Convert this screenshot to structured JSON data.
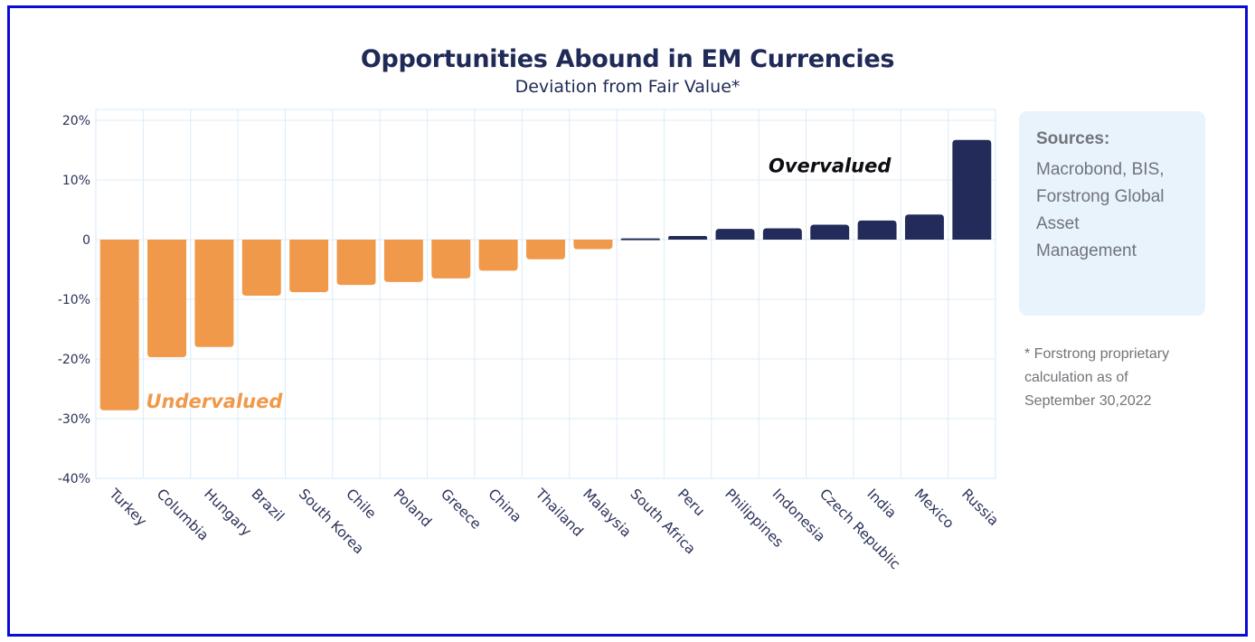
{
  "chart_data": {
    "type": "bar",
    "title": "Opportunities Abound in EM Currencies",
    "subtitle": "Deviation from Fair Value*",
    "xlabel": "",
    "ylabel": "",
    "ylim": [
      -40,
      20
    ],
    "yticks": [
      20,
      10,
      0,
      -10,
      -20,
      -30,
      -40
    ],
    "ytick_labels": [
      "20%",
      "10%",
      "0",
      "-10%",
      "-20%",
      "-30%",
      "-40%"
    ],
    "grid": true,
    "categories": [
      "Turkey",
      "Columbia",
      "Hungary",
      "Brazil",
      "South Korea",
      "Chile",
      "Poland",
      "Greece",
      "China",
      "Thailand",
      "Malaysia",
      "South Africa",
      "Peru",
      "Philippines",
      "Indonesia",
      "Czech Republic",
      "India",
      "Mexico",
      "Russia"
    ],
    "values": [
      -28.6,
      -19.7,
      -18.0,
      -9.4,
      -8.8,
      -7.6,
      -7.1,
      -6.5,
      -5.2,
      -3.3,
      -1.6,
      0.2,
      0.6,
      1.8,
      1.9,
      2.5,
      3.2,
      4.2,
      16.7
    ],
    "colors": {
      "negative": "#f0994a",
      "positive": "#222b59"
    },
    "annotations": [
      {
        "text": "Undervalued",
        "color": "#f0994a",
        "anchor_category": "Hungary",
        "anchor_value": -27
      },
      {
        "text": "Overvalued",
        "color": "#0d0d12",
        "anchor_category": "Czech Republic",
        "anchor_value": 12.5
      }
    ]
  },
  "sidebar": {
    "sources_title": "Sources:",
    "sources_lines": [
      "Macrobond, BIS,",
      "Forstrong Global",
      "Asset",
      "Management"
    ],
    "footnote_lines": [
      "* Forstrong proprietary",
      "calculation as of",
      "September 30,2022"
    ]
  },
  "colors": {
    "frame": "#0b0bd6",
    "title": "#202a57",
    "grid": "#dcecf9",
    "sources_bg": "#e9f3fc",
    "sources_text": "#707478"
  }
}
